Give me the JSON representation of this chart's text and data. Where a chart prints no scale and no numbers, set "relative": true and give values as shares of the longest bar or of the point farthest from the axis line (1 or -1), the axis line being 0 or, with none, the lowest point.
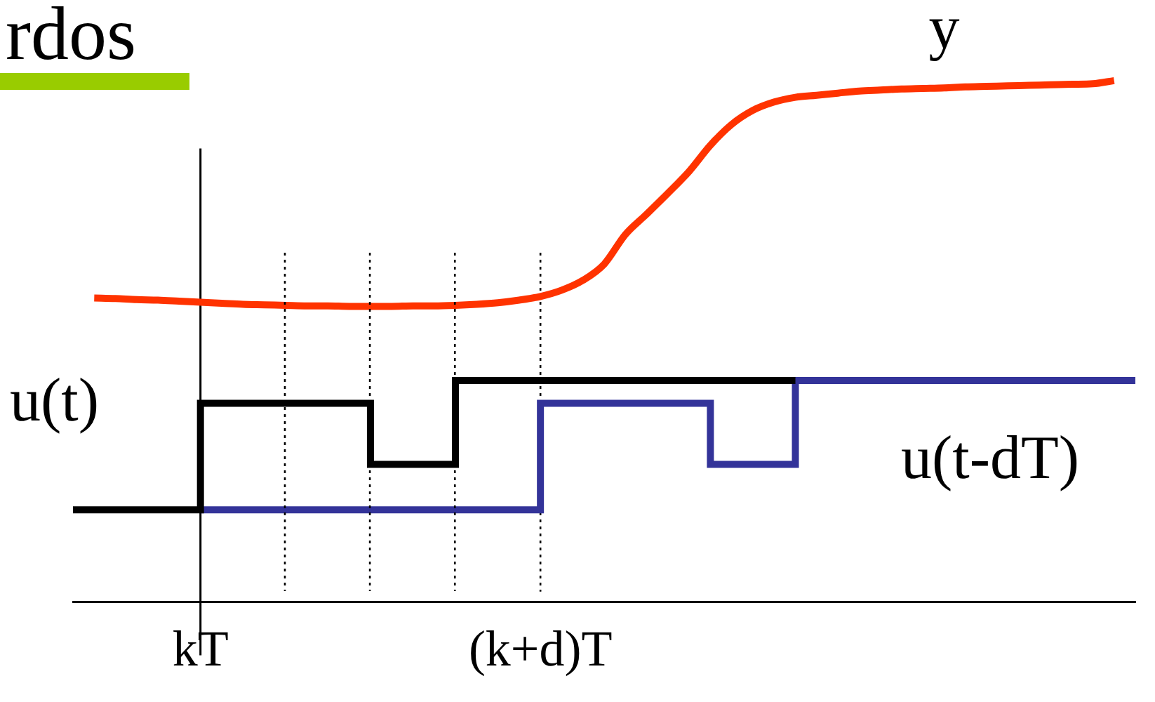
{
  "chart_data": {
    "type": "line",
    "title": "rdos",
    "relative": true,
    "tick_labels": "x",
    "grid": false,
    "legend": false,
    "marker": "none",
    "categories": [
      null,
      null,
      null,
      null,
      null,
      null,
      "kT",
      null,
      null,
      null,
      null,
      null,
      null,
      null,
      null,
      null,
      null,
      null,
      null,
      null,
      null,
      null,
      "(k+d)T",
      null,
      null,
      null,
      null,
      null,
      null,
      null,
      null,
      null,
      null,
      null,
      null,
      null,
      null,
      null,
      null,
      null,
      null,
      null,
      null,
      null,
      null,
      null,
      null,
      null,
      null,
      null,
      null
    ],
    "ref_lines": [
      {
        "axis": "x",
        "value": "kT",
        "color": "#000000",
        "line_style": "solid"
      },
      {
        "axis": "x",
        "value": "(k+d)T",
        "color": "#000000",
        "line_style": "dotted"
      }
    ],
    "series": [
      {
        "name": "y",
        "color": "#ff3300",
        "values": [
          null,
          0.583,
          0.582,
          0.58,
          0.579,
          0.577,
          0.575,
          0.573,
          0.571,
          0.57,
          0.569,
          0.568,
          0.568,
          0.567,
          0.567,
          0.567,
          0.568,
          0.568,
          0.569,
          0.571,
          0.574,
          0.579,
          0.586,
          0.598,
          0.617,
          0.648,
          0.705,
          0.744,
          0.784,
          0.826,
          0.876,
          0.916,
          0.943,
          0.959,
          0.968,
          0.972,
          0.976,
          0.98,
          0.982,
          0.984,
          0.985,
          0.986,
          0.988,
          0.989,
          0.99,
          0.991,
          0.992,
          0.993,
          0.994,
          1.0,
          null
        ]
      },
      {
        "name": "u(t)",
        "type": "step",
        "color": "#000000",
        "values": [
          0.177,
          0.177,
          0.177,
          0.177,
          0.177,
          0.177,
          0.381,
          0.381,
          0.381,
          0.381,
          0.381,
          0.381,
          0.381,
          0.381,
          0.264,
          0.264,
          0.264,
          0.264,
          0.425,
          0.425,
          0.425,
          0.425,
          0.425,
          0.425,
          0.425,
          0.425,
          0.425,
          0.425,
          0.425,
          0.425,
          0.425,
          0.425,
          0.425,
          0.425,
          0.425,
          null,
          null,
          null,
          null,
          null,
          null,
          null,
          null,
          null,
          null,
          null,
          null,
          null,
          null,
          null,
          null
        ]
      },
      {
        "name": "u(t-dT)",
        "type": "step",
        "color": "#333399",
        "values": [
          null,
          null,
          null,
          null,
          null,
          null,
          0.177,
          0.177,
          0.177,
          0.177,
          0.177,
          0.177,
          0.177,
          0.177,
          0.177,
          0.177,
          0.177,
          0.177,
          0.177,
          0.177,
          0.177,
          0.177,
          0.381,
          0.381,
          0.381,
          0.381,
          0.381,
          0.381,
          0.381,
          0.381,
          0.264,
          0.264,
          0.264,
          0.264,
          0.425,
          0.425,
          0.425,
          0.425,
          0.425,
          0.425,
          0.425,
          0.425,
          0.425,
          0.425,
          0.425,
          0.425,
          0.425,
          0.425,
          0.425,
          0.425,
          0.425
        ]
      }
    ]
  }
}
